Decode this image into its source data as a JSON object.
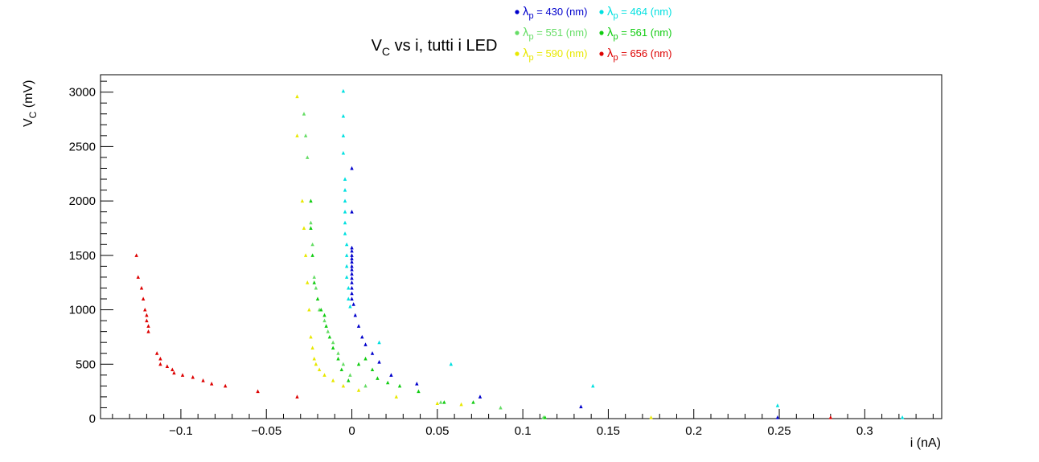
{
  "chart_data": {
    "type": "scatter",
    "title": {
      "main": "V",
      "sub": "C",
      "rest": " vs i, tutti i LED"
    },
    "xlabel": "i (nA)",
    "ylabel": {
      "main": "V",
      "sub": "C",
      "rest": " (mV)"
    },
    "xlim": [
      -0.147,
      0.345
    ],
    "ylim": [
      0,
      3160
    ],
    "xticks": [
      {
        "v": -0.1,
        "label": "−0.1"
      },
      {
        "v": -0.05,
        "label": "−0.05"
      },
      {
        "v": 0,
        "label": "0"
      },
      {
        "v": 0.05,
        "label": "0.05"
      },
      {
        "v": 0.1,
        "label": "0.1"
      },
      {
        "v": 0.15,
        "label": "0.15"
      },
      {
        "v": 0.2,
        "label": "0.2"
      },
      {
        "v": 0.25,
        "label": "0.25"
      },
      {
        "v": 0.3,
        "label": "0.3"
      }
    ],
    "yticks": [
      {
        "v": 0,
        "label": "0"
      },
      {
        "v": 500,
        "label": "500"
      },
      {
        "v": 1000,
        "label": "1000"
      },
      {
        "v": 1500,
        "label": "1500"
      },
      {
        "v": 2000,
        "label": "2000"
      },
      {
        "v": 2500,
        "label": "2500"
      },
      {
        "v": 3000,
        "label": "3000"
      }
    ],
    "grid": false,
    "legend_position": "top-right",
    "series": [
      {
        "name": "430 (nm)",
        "color": "#0000cc",
        "points": [
          [
            0.0,
            2300
          ],
          [
            0.0,
            1900
          ],
          [
            0.0,
            1570
          ],
          [
            0.0,
            1540
          ],
          [
            0.0,
            1500
          ],
          [
            0.0,
            1470
          ],
          [
            0.0,
            1440
          ],
          [
            0.0,
            1400
          ],
          [
            0.0,
            1370
          ],
          [
            0.0,
            1330
          ],
          [
            0.0,
            1290
          ],
          [
            0.0,
            1250
          ],
          [
            0.0,
            1200
          ],
          [
            0.0,
            1150
          ],
          [
            0.0,
            1100
          ],
          [
            0.001,
            1050
          ],
          [
            0.002,
            950
          ],
          [
            0.004,
            850
          ],
          [
            0.006,
            750
          ],
          [
            0.008,
            680
          ],
          [
            0.012,
            600
          ],
          [
            0.016,
            520
          ],
          [
            0.023,
            400
          ],
          [
            0.038,
            320
          ],
          [
            0.075,
            200
          ],
          [
            0.134,
            110
          ],
          [
            0.249,
            10
          ]
        ]
      },
      {
        "name": "464 (nm)",
        "color": "#00e0e0",
        "points": [
          [
            -0.005,
            3010
          ],
          [
            -0.005,
            2780
          ],
          [
            -0.005,
            2600
          ],
          [
            -0.005,
            2440
          ],
          [
            -0.004,
            2200
          ],
          [
            -0.004,
            2100
          ],
          [
            -0.004,
            2000
          ],
          [
            -0.004,
            1900
          ],
          [
            -0.004,
            1800
          ],
          [
            -0.004,
            1700
          ],
          [
            -0.003,
            1600
          ],
          [
            -0.003,
            1500
          ],
          [
            -0.003,
            1400
          ],
          [
            -0.003,
            1300
          ],
          [
            -0.002,
            1200
          ],
          [
            -0.002,
            1100
          ],
          [
            -0.001,
            1030
          ],
          [
            0.016,
            700
          ],
          [
            0.058,
            500
          ],
          [
            0.141,
            300
          ],
          [
            0.249,
            120
          ],
          [
            0.322,
            10
          ]
        ]
      },
      {
        "name": "551 (nm)",
        "color": "#66dd66",
        "points": [
          [
            -0.028,
            2800
          ],
          [
            -0.027,
            2600
          ],
          [
            -0.026,
            2400
          ],
          [
            -0.024,
            1800
          ],
          [
            -0.023,
            1600
          ],
          [
            -0.022,
            1300
          ],
          [
            -0.021,
            1200
          ],
          [
            -0.019,
            1000
          ],
          [
            -0.016,
            900
          ],
          [
            -0.014,
            800
          ],
          [
            -0.011,
            700
          ],
          [
            -0.008,
            600
          ],
          [
            -0.005,
            500
          ],
          [
            -0.001,
            400
          ],
          [
            0.008,
            300
          ],
          [
            0.052,
            150
          ],
          [
            0.087,
            100
          ],
          [
            0.112,
            10
          ]
        ]
      },
      {
        "name": "561 (nm)",
        "color": "#11cc11",
        "points": [
          [
            -0.024,
            2000
          ],
          [
            -0.024,
            1750
          ],
          [
            -0.023,
            1500
          ],
          [
            -0.022,
            1250
          ],
          [
            -0.02,
            1100
          ],
          [
            -0.018,
            1000
          ],
          [
            -0.016,
            950
          ],
          [
            -0.015,
            850
          ],
          [
            -0.013,
            750
          ],
          [
            -0.011,
            650
          ],
          [
            -0.008,
            550
          ],
          [
            -0.006,
            450
          ],
          [
            -0.002,
            350
          ],
          [
            0.004,
            500
          ],
          [
            0.008,
            550
          ],
          [
            0.012,
            450
          ],
          [
            0.015,
            370
          ],
          [
            0.021,
            330
          ],
          [
            0.028,
            300
          ],
          [
            0.039,
            250
          ],
          [
            0.054,
            150
          ],
          [
            0.071,
            150
          ],
          [
            0.113,
            10
          ]
        ]
      },
      {
        "name": "590 (nm)",
        "color": "#e8e800",
        "points": [
          [
            -0.032,
            2960
          ],
          [
            -0.032,
            2600
          ],
          [
            -0.029,
            2000
          ],
          [
            -0.028,
            1750
          ],
          [
            -0.027,
            1500
          ],
          [
            -0.026,
            1250
          ],
          [
            -0.025,
            1000
          ],
          [
            -0.024,
            750
          ],
          [
            -0.023,
            650
          ],
          [
            -0.022,
            550
          ],
          [
            -0.021,
            500
          ],
          [
            -0.019,
            450
          ],
          [
            -0.016,
            400
          ],
          [
            -0.011,
            350
          ],
          [
            -0.005,
            300
          ],
          [
            0.004,
            260
          ],
          [
            0.026,
            200
          ],
          [
            0.05,
            140
          ],
          [
            0.064,
            130
          ],
          [
            0.175,
            10
          ]
        ]
      },
      {
        "name": "656 (nm)",
        "color": "#dd0000",
        "points": [
          [
            -0.126,
            1500
          ],
          [
            -0.125,
            1300
          ],
          [
            -0.123,
            1200
          ],
          [
            -0.122,
            1100
          ],
          [
            -0.121,
            1000
          ],
          [
            -0.12,
            950
          ],
          [
            -0.12,
            900
          ],
          [
            -0.119,
            850
          ],
          [
            -0.119,
            800
          ],
          [
            -0.114,
            600
          ],
          [
            -0.112,
            550
          ],
          [
            -0.112,
            500
          ],
          [
            -0.108,
            480
          ],
          [
            -0.105,
            450
          ],
          [
            -0.104,
            420
          ],
          [
            -0.099,
            400
          ],
          [
            -0.093,
            380
          ],
          [
            -0.087,
            350
          ],
          [
            -0.082,
            320
          ],
          [
            -0.074,
            300
          ],
          [
            -0.055,
            250
          ],
          [
            -0.032,
            200
          ],
          [
            0.28,
            10
          ]
        ]
      }
    ]
  }
}
